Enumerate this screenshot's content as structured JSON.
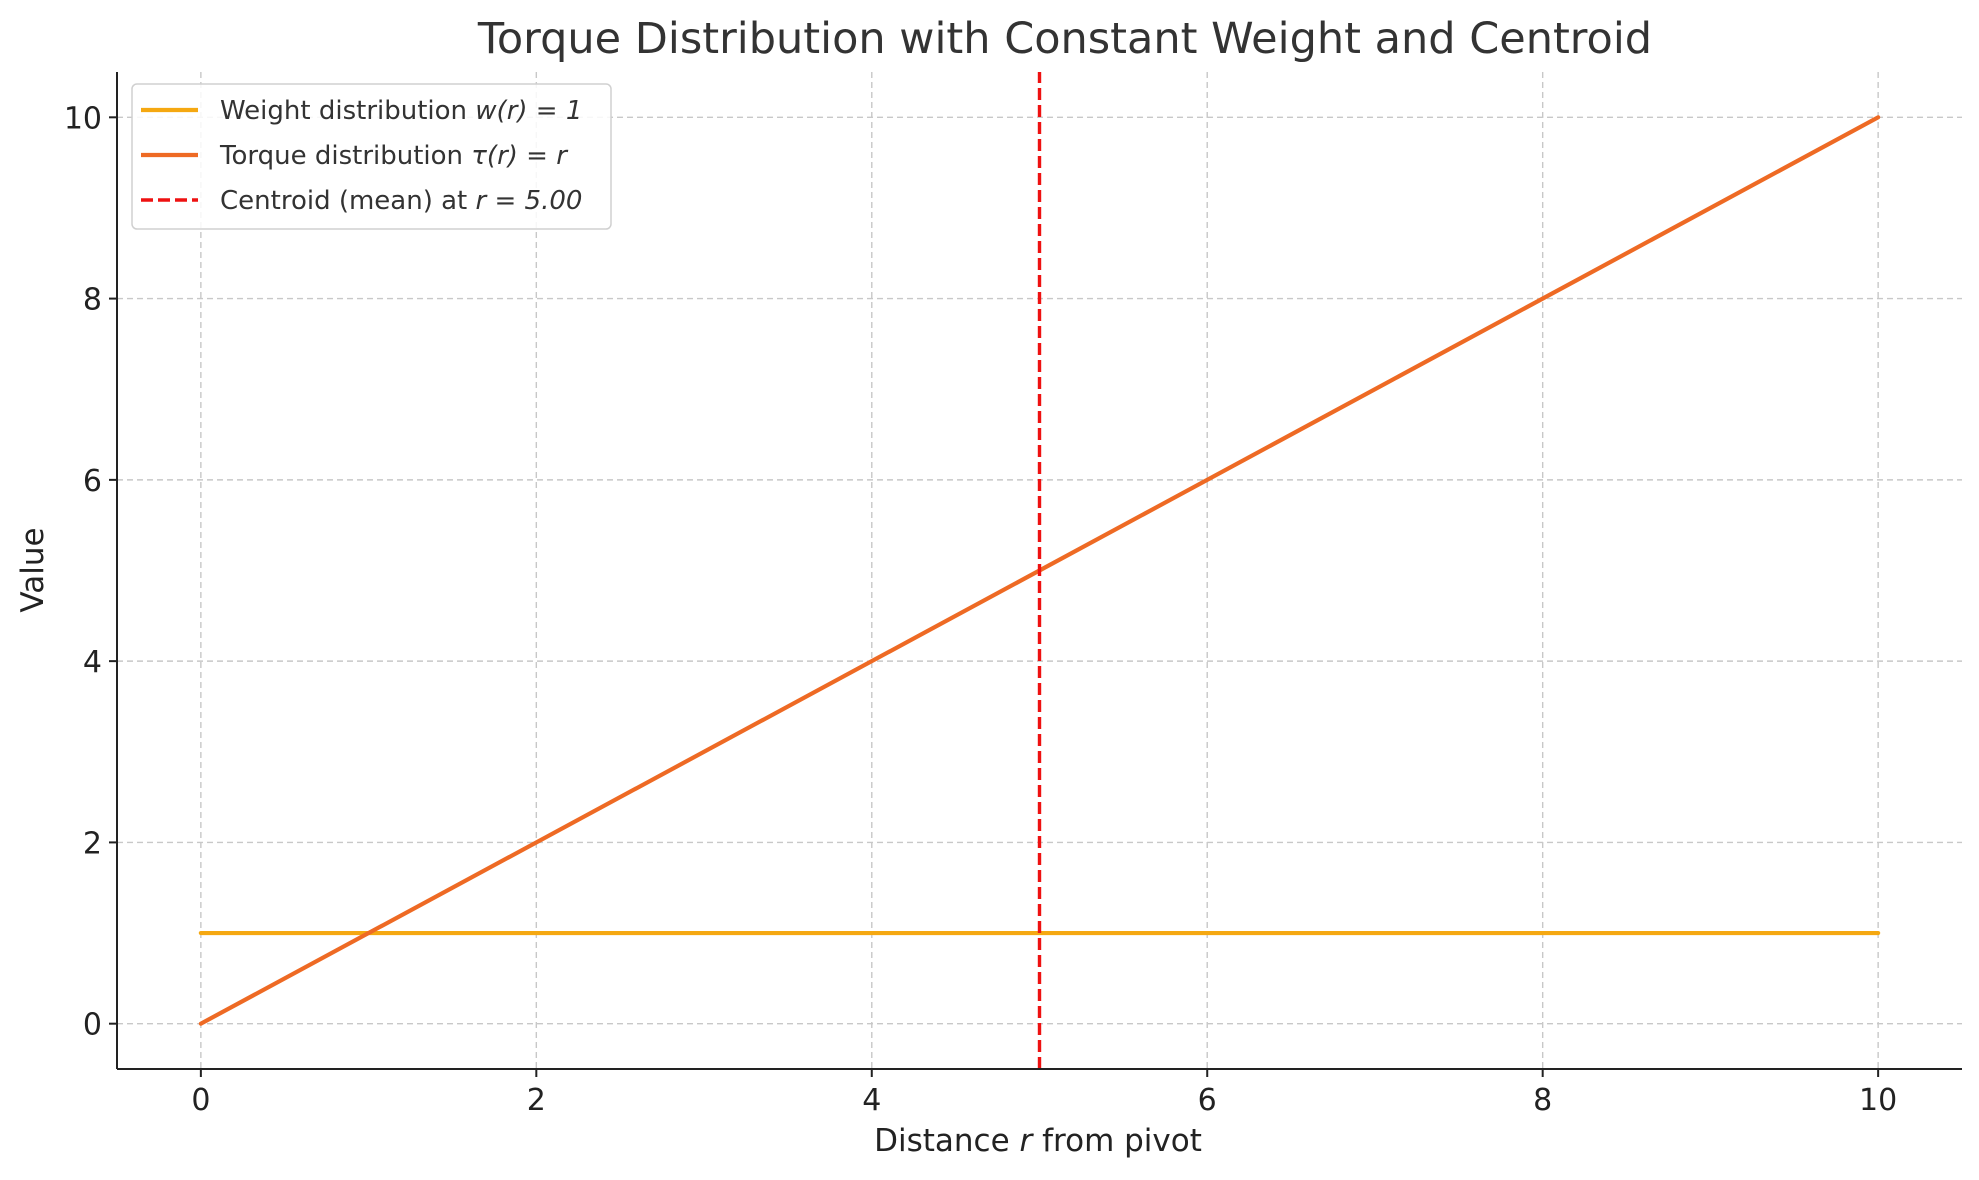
{
  "chart_data": {
    "type": "line",
    "title": "Torque Distribution with Constant Weight and Centroid",
    "xlabel": {
      "prefix": "Distance ",
      "var": "r",
      "suffix": " from pivot"
    },
    "ylabel": "Value",
    "xlim": [
      -0.5,
      10.5
    ],
    "ylim": [
      -0.5,
      10.5
    ],
    "x_ticks": [
      0,
      2,
      4,
      6,
      8,
      10
    ],
    "y_ticks": [
      0,
      2,
      4,
      6,
      8,
      10
    ],
    "x_tick_labels": [
      "0",
      "2",
      "4",
      "6",
      "8",
      "10"
    ],
    "y_tick_labels": [
      "0",
      "2",
      "4",
      "6",
      "8",
      "10"
    ],
    "grid": true,
    "legend_position": "top-left",
    "series": [
      {
        "name": "Weight distribution w(r) = 1",
        "label_parts": {
          "prefix": "Weight distribution ",
          "math": "w(r) = 1"
        },
        "style": "solid",
        "color": "#F5A811",
        "x": [
          0,
          10
        ],
        "y": [
          1,
          1
        ]
      },
      {
        "name": "Torque distribution τ(r) = r",
        "label_parts": {
          "prefix": "Torque distribution ",
          "math": "τ(r) = r"
        },
        "style": "solid",
        "color": "#EE6A24",
        "x": [
          0,
          10
        ],
        "y": [
          0,
          10
        ]
      },
      {
        "name": "Centroid (mean) at r = 5.00",
        "label_parts": {
          "prefix": "Centroid (mean) at ",
          "math": "r = 5.00"
        },
        "style": "dashed",
        "orientation": "vertical",
        "color": "#EE1111",
        "x": [
          5.0,
          5.0
        ],
        "y": [
          -0.5,
          10.5
        ]
      }
    ]
  }
}
